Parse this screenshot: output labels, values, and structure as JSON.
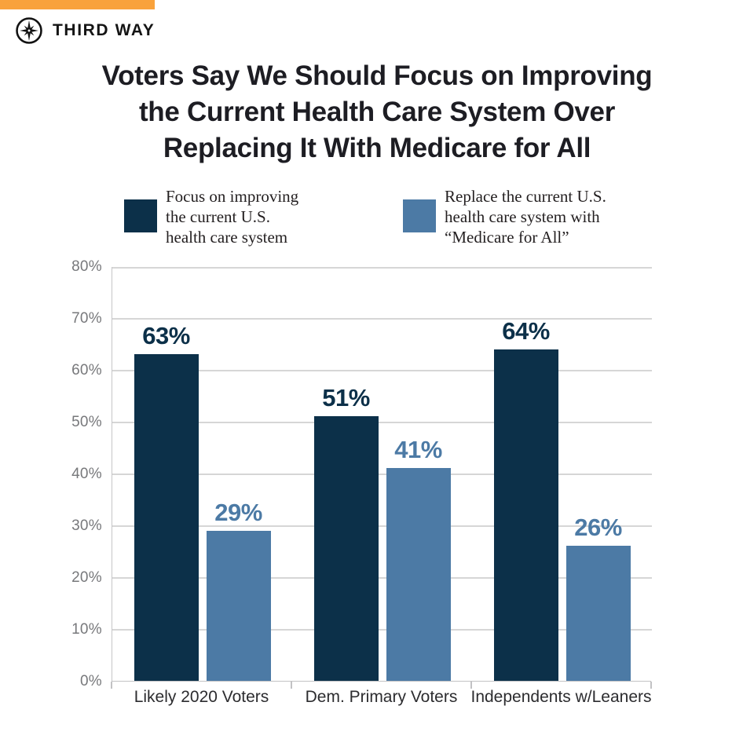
{
  "brand": {
    "name": "THIRD WAY",
    "accent_color": "#F9A23C",
    "logo_icon": "compass-star-icon"
  },
  "header": {
    "title_lines": [
      "Voters Say We Should Focus on Improving",
      "the Current Health Care System Over",
      "Replacing It With Medicare for All"
    ]
  },
  "legend": {
    "items": [
      {
        "label_lines": [
          "Focus on improving",
          "the current U.S.",
          "health care system"
        ]
      },
      {
        "label_lines": [
          "Replace the current U.S.",
          "health care system with",
          "“Medicare for All”"
        ]
      }
    ]
  },
  "chart_data": {
    "type": "bar",
    "title": "Voters Say We Should Focus on Improving the Current Health Care System Over Replacing It With Medicare for All",
    "categories": [
      "Likely 2020 Voters",
      "Dem. Primary Voters",
      "Independents w/Leaners"
    ],
    "series": [
      {
        "name": "Focus on improving the current U.S. health care system",
        "color": "#0C3049",
        "values": [
          63,
          51,
          64
        ]
      },
      {
        "name": "Replace the current U.S. health care system with “Medicare for All”",
        "color": "#4C7AA5",
        "values": [
          29,
          41,
          26
        ]
      }
    ],
    "value_label_format": "{v}%",
    "ylim": [
      0,
      80
    ],
    "ytick_labels": [
      "80%",
      "70%",
      "60%",
      "50%",
      "40%",
      "30%",
      "20%",
      "10%",
      "0%"
    ],
    "grid": true,
    "legend_position": "top",
    "xlabel": "",
    "ylabel": ""
  }
}
